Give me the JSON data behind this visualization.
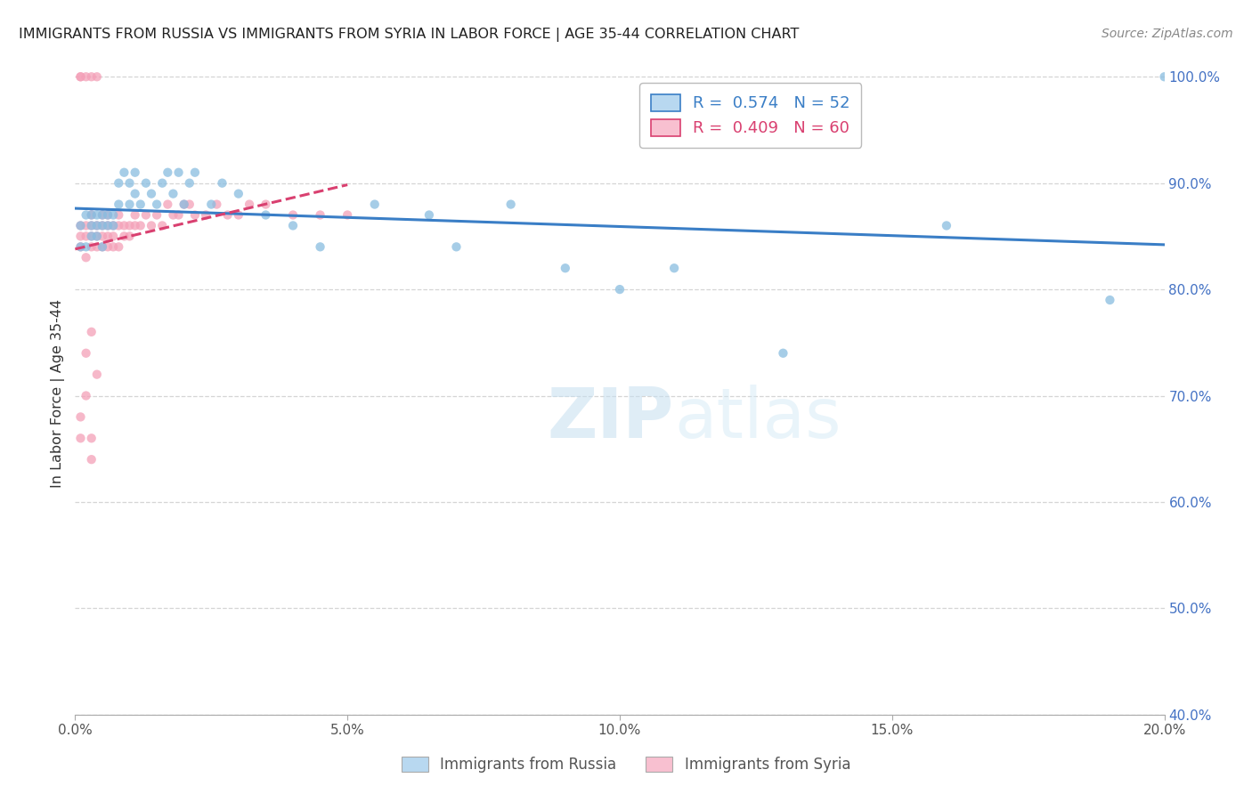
{
  "title": "IMMIGRANTS FROM RUSSIA VS IMMIGRANTS FROM SYRIA IN LABOR FORCE | AGE 35-44 CORRELATION CHART",
  "source": "Source: ZipAtlas.com",
  "ylabel": "In Labor Force | Age 35-44",
  "xlim": [
    0.0,
    0.2
  ],
  "ylim": [
    0.4,
    1.005
  ],
  "russia_color": "#89bde0",
  "syria_color": "#f4a0b8",
  "russia_r": 0.574,
  "russia_n": 52,
  "syria_r": 0.409,
  "syria_n": 60,
  "russia_line_color": "#3a7ec6",
  "syria_line_color": "#d94070",
  "watermark_zip": "ZIP",
  "watermark_atlas": "atlas",
  "legend_box_color_russia": "#b8d8f0",
  "legend_box_color_syria": "#f8c0d0",
  "russia_x": [
    0.001,
    0.001,
    0.002,
    0.002,
    0.003,
    0.003,
    0.003,
    0.004,
    0.004,
    0.004,
    0.005,
    0.005,
    0.005,
    0.006,
    0.006,
    0.007,
    0.007,
    0.008,
    0.008,
    0.009,
    0.01,
    0.01,
    0.011,
    0.011,
    0.012,
    0.013,
    0.014,
    0.015,
    0.016,
    0.017,
    0.018,
    0.019,
    0.02,
    0.021,
    0.022,
    0.025,
    0.027,
    0.03,
    0.035,
    0.04,
    0.045,
    0.055,
    0.065,
    0.07,
    0.08,
    0.09,
    0.1,
    0.11,
    0.13,
    0.16,
    0.19,
    0.2
  ],
  "russia_y": [
    0.84,
    0.86,
    0.84,
    0.87,
    0.85,
    0.86,
    0.87,
    0.85,
    0.86,
    0.87,
    0.84,
    0.86,
    0.87,
    0.86,
    0.87,
    0.86,
    0.87,
    0.88,
    0.9,
    0.91,
    0.88,
    0.9,
    0.89,
    0.91,
    0.88,
    0.9,
    0.89,
    0.88,
    0.9,
    0.91,
    0.89,
    0.91,
    0.88,
    0.9,
    0.91,
    0.88,
    0.9,
    0.89,
    0.87,
    0.86,
    0.84,
    0.88,
    0.87,
    0.84,
    0.88,
    0.82,
    0.8,
    0.82,
    0.74,
    0.86,
    0.79,
    1.0
  ],
  "syria_x": [
    0.001,
    0.001,
    0.001,
    0.001,
    0.001,
    0.002,
    0.002,
    0.002,
    0.002,
    0.003,
    0.003,
    0.003,
    0.003,
    0.003,
    0.004,
    0.004,
    0.004,
    0.004,
    0.005,
    0.005,
    0.005,
    0.005,
    0.006,
    0.006,
    0.006,
    0.006,
    0.007,
    0.007,
    0.007,
    0.008,
    0.008,
    0.008,
    0.009,
    0.009,
    0.01,
    0.01,
    0.011,
    0.011,
    0.012,
    0.013,
    0.014,
    0.015,
    0.016,
    0.017,
    0.018,
    0.019,
    0.02,
    0.021,
    0.022,
    0.024,
    0.026,
    0.028,
    0.03,
    0.032,
    0.035,
    0.04,
    0.045,
    0.05,
    0.003,
    0.004
  ],
  "syria_y": [
    0.84,
    0.85,
    0.86,
    1.0,
    1.0,
    0.83,
    0.85,
    0.86,
    1.0,
    0.84,
    0.85,
    0.86,
    0.87,
    1.0,
    0.84,
    0.85,
    0.86,
    1.0,
    0.84,
    0.85,
    0.86,
    0.87,
    0.84,
    0.85,
    0.86,
    0.87,
    0.84,
    0.85,
    0.86,
    0.84,
    0.86,
    0.87,
    0.85,
    0.86,
    0.85,
    0.86,
    0.86,
    0.87,
    0.86,
    0.87,
    0.86,
    0.87,
    0.86,
    0.88,
    0.87,
    0.87,
    0.88,
    0.88,
    0.87,
    0.87,
    0.88,
    0.87,
    0.87,
    0.88,
    0.88,
    0.87,
    0.87,
    0.87,
    0.76,
    0.72
  ],
  "syria_low_x": [
    0.001,
    0.001,
    0.002,
    0.002,
    0.003,
    0.003
  ],
  "syria_low_y": [
    0.68,
    0.66,
    0.74,
    0.7,
    0.66,
    0.64
  ],
  "xticks": [
    0.0,
    0.05,
    0.1,
    0.15,
    0.2
  ],
  "xtick_labels": [
    "0.0%",
    "5.0%",
    "10.0%",
    "15.0%",
    "20.0%"
  ],
  "yticks_right": [
    0.4,
    0.5,
    0.6,
    0.7,
    0.8,
    0.9,
    1.0
  ],
  "ytick_labels_right": [
    "40.0%",
    "50.0%",
    "60.0%",
    "70.0%",
    "80.0%",
    "90.0%",
    "100.0%"
  ],
  "grid_color": "#d5d5d5",
  "axis_color": "#4472C4",
  "background_color": "#ffffff",
  "tick_color": "#555555"
}
